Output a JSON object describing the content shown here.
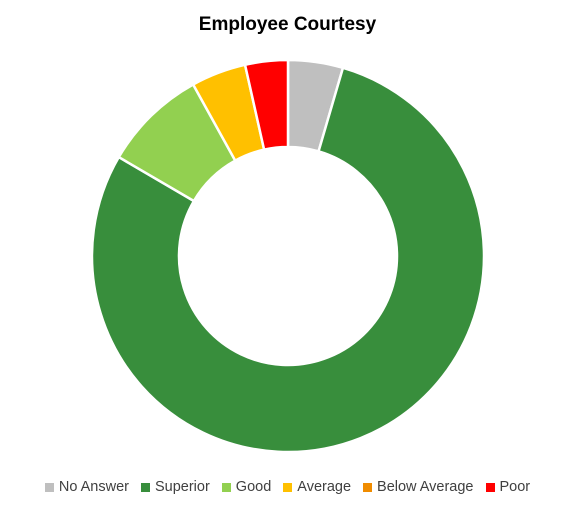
{
  "chart_data": {
    "type": "pie",
    "title": "Employee Courtesy",
    "legend_position": "bottom",
    "donut": true,
    "categories": [
      "No Answer",
      "Superior",
      "Good",
      "Average",
      "Below Average",
      "Poor"
    ],
    "values": [
      4.5,
      78.5,
      8.5,
      4.5,
      0,
      3.5
    ],
    "colors": [
      "#BFBFBF",
      "#388E3C",
      "#92D050",
      "#FFC000",
      "#F08C00",
      "#FF0000"
    ]
  }
}
